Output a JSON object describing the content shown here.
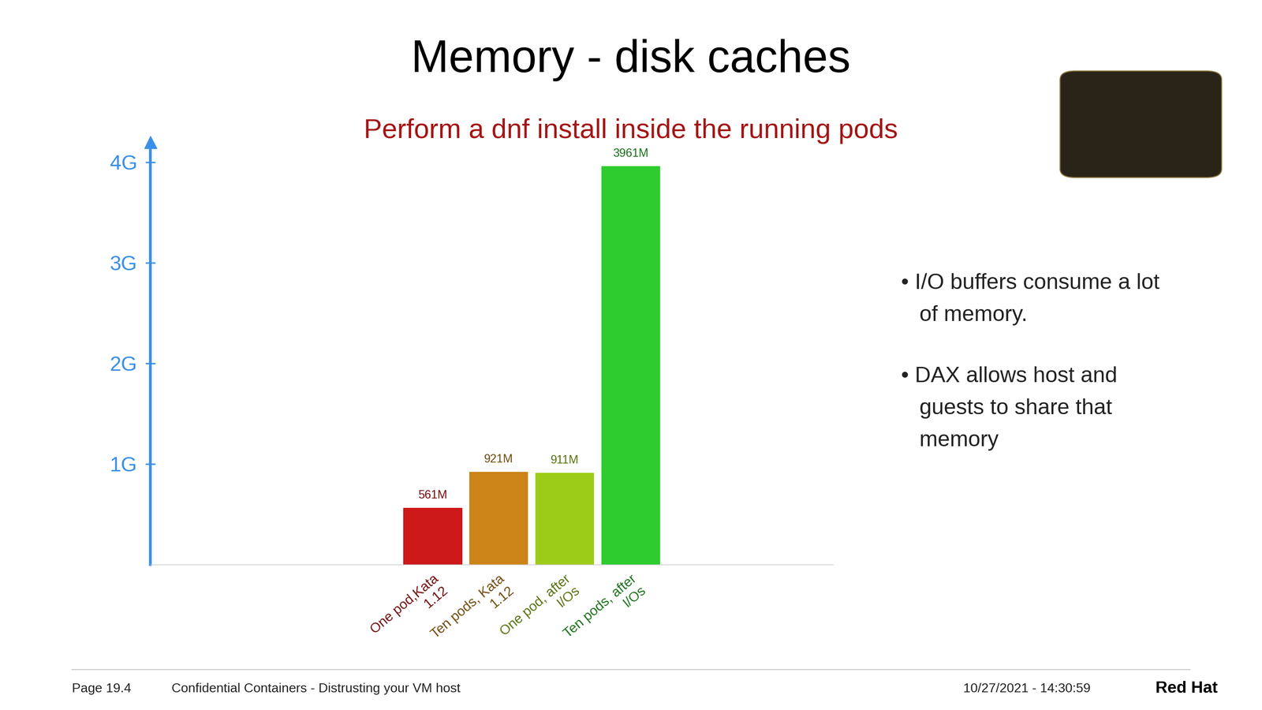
{
  "chart_data": {
    "type": "bar",
    "title": "Memory - disk caches",
    "subtitle": "Perform a dnf install inside the running pods",
    "categories": [
      "One pod,Kata\n1.12",
      "Ten pods, Kata\n1.12",
      "One pod, after\nI/Os",
      "Ten pods, after\nI/Os"
    ],
    "values": [
      0.561,
      0.921,
      0.911,
      3.961
    ],
    "value_labels": [
      "561M",
      "921M",
      "911M",
      "3961M"
    ],
    "colors": [
      "#cc1818",
      "#cc8418",
      "#9dcc18",
      "#2ecc2e"
    ],
    "ylim": [
      0,
      4.2
    ],
    "yticks": [
      {
        "value": 1,
        "label": "1G"
      },
      {
        "value": 2,
        "label": "2G"
      },
      {
        "value": 3,
        "label": "3G"
      },
      {
        "value": 4,
        "label": "4G"
      }
    ],
    "grid": false,
    "data_labels": true
  },
  "bullets": [
    "• I/O buffers consume a lot\n   of memory.",
    "• DAX allows host and\n   guests to share that\n   memory"
  ],
  "footer": {
    "page": "Page 19.4",
    "deck": "Confidential Containers - Distrusting your VM host",
    "timestamp": "10/27/2021 - 14:30:59",
    "brand": "Red Hat"
  }
}
